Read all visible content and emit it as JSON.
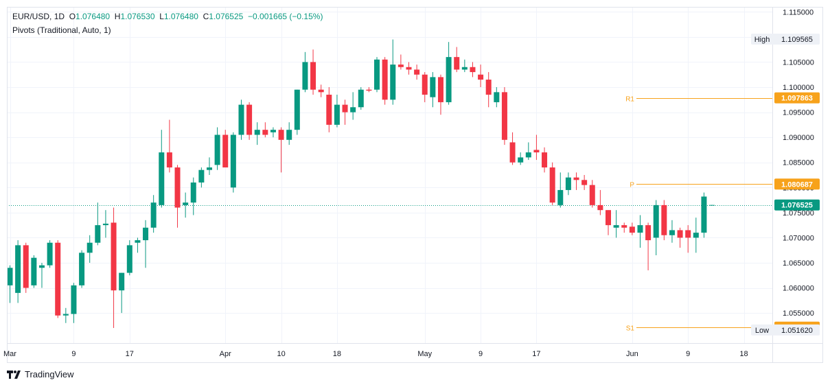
{
  "legend": {
    "symbol": "EUR/USD",
    "interval": "1D",
    "open_label": "O",
    "open": "1.076480",
    "high_label": "H",
    "high": "1.076530",
    "low_label": "L",
    "low": "1.076480",
    "close_label": "C",
    "close": "1.076525",
    "change": "−0.001665 (−0.15%)",
    "indicator": "Pivots (Traditional, Auto, 1)"
  },
  "brand": "TradingView",
  "colors": {
    "up": "#089981",
    "down": "#f23645",
    "pivot": "#f7a21b",
    "grid": "#f0f3fa",
    "text": "#131722",
    "axis_border": "#e0e3eb"
  },
  "chart_data": {
    "type": "candlestick",
    "title": "",
    "xlabel": "",
    "ylabel": "",
    "ylim": [
      1.049,
      1.116
    ],
    "y_ticks": [
      "1.115000",
      "1.110000",
      "1.105000",
      "1.100000",
      "1.095000",
      "1.090000",
      "1.085000",
      "1.080000",
      "1.075000",
      "1.070000",
      "1.065000",
      "1.060000",
      "1.055000"
    ],
    "x_ticks": [
      {
        "label": "Mar",
        "bar": 0
      },
      {
        "label": "9",
        "bar": 8
      },
      {
        "label": "17",
        "bar": 15
      },
      {
        "label": "Apr",
        "bar": 27
      },
      {
        "label": "10",
        "bar": 34
      },
      {
        "label": "18",
        "bar": 41
      },
      {
        "label": "May",
        "bar": 52
      },
      {
        "label": "9",
        "bar": 59
      },
      {
        "label": "17",
        "bar": 66
      },
      {
        "label": "Jun",
        "bar": 78
      },
      {
        "label": "9",
        "bar": 85
      },
      {
        "label": "18",
        "bar": 92
      }
    ],
    "candles": [
      [
        1.0605,
        1.0645,
        1.057,
        1.064
      ],
      [
        1.059,
        1.0695,
        1.057,
        1.0685
      ],
      [
        1.0685,
        1.069,
        1.059,
        1.06
      ],
      [
        1.0605,
        1.0665,
        1.06,
        1.066
      ],
      [
        1.064,
        1.065,
        1.06,
        1.0645
      ],
      [
        1.0645,
        1.0695,
        1.064,
        1.069
      ],
      [
        1.069,
        1.0695,
        1.054,
        1.0545
      ],
      [
        1.0545,
        1.056,
        1.053,
        1.0548
      ],
      [
        1.0548,
        1.061,
        1.053,
        1.0605
      ],
      [
        1.0605,
        1.0675,
        1.06,
        1.067
      ],
      [
        1.067,
        1.0705,
        1.065,
        1.069
      ],
      [
        1.069,
        1.077,
        1.0685,
        1.0725
      ],
      [
        1.0725,
        1.0755,
        1.07,
        1.0728
      ],
      [
        1.073,
        1.076,
        1.052,
        1.0595
      ],
      [
        1.0595,
        1.063,
        1.055,
        1.063
      ],
      [
        1.063,
        1.0695,
        1.0625,
        1.0685
      ],
      [
        1.069,
        1.07,
        1.067,
        1.0695
      ],
      [
        1.0695,
        1.0735,
        1.064,
        1.072
      ],
      [
        1.072,
        1.0785,
        1.071,
        1.077
      ],
      [
        1.0765,
        1.0915,
        1.076,
        1.087
      ],
      [
        1.087,
        1.0935,
        1.083,
        1.084
      ],
      [
        1.084,
        1.0845,
        1.072,
        1.076
      ],
      [
        1.0765,
        1.079,
        1.074,
        1.077
      ],
      [
        1.077,
        1.082,
        1.0745,
        1.081
      ],
      [
        1.081,
        1.084,
        1.08,
        1.0835
      ],
      [
        1.0835,
        1.086,
        1.0825,
        1.084
      ],
      [
        1.0845,
        1.092,
        1.0835,
        1.0905
      ],
      [
        1.0905,
        1.0915,
        1.084,
        1.084
      ],
      [
        1.08,
        1.091,
        1.079,
        1.0905
      ],
      [
        1.0905,
        1.0975,
        1.0895,
        1.0965
      ],
      [
        1.0965,
        1.097,
        1.0895,
        1.0905
      ],
      [
        1.0905,
        1.093,
        1.0885,
        1.0915
      ],
      [
        1.0915,
        1.093,
        1.09,
        1.0905
      ],
      [
        1.091,
        1.092,
        1.09,
        1.0915
      ],
      [
        1.0915,
        1.092,
        1.083,
        1.0895
      ],
      [
        1.0895,
        1.093,
        1.0885,
        1.0915
      ],
      [
        1.0915,
        1.0995,
        1.0905,
        1.0995
      ],
      [
        1.0995,
        1.107,
        1.099,
        1.105
      ],
      [
        1.105,
        1.1075,
        1.0985,
        1.0995
      ],
      [
        1.0995,
        1.1005,
        1.098,
        1.099
      ],
      [
        1.0985,
        1.1,
        1.091,
        1.0925
      ],
      [
        1.0925,
        1.0985,
        1.092,
        1.0965
      ],
      [
        1.0965,
        1.0975,
        1.0925,
        1.095
      ],
      [
        1.095,
        1.099,
        1.0935,
        1.096
      ],
      [
        1.096,
        1.1,
        1.0955,
        1.0995
      ],
      [
        1.0995,
        1.1,
        1.099,
        1.0993
      ],
      [
        1.0995,
        1.106,
        1.099,
        1.1055
      ],
      [
        1.1055,
        1.106,
        1.0965,
        1.0975
      ],
      [
        1.0975,
        1.1095,
        1.0965,
        1.1045
      ],
      [
        1.1045,
        1.1065,
        1.1035,
        1.104
      ],
      [
        1.104,
        1.105,
        1.1025,
        1.1035
      ],
      [
        1.1035,
        1.1045,
        1.1015,
        1.1025
      ],
      [
        1.1025,
        1.103,
        1.097,
        1.0985
      ],
      [
        1.098,
        1.103,
        1.096,
        1.102
      ],
      [
        1.102,
        1.1025,
        1.0945,
        1.097
      ],
      [
        1.097,
        1.109,
        1.0965,
        1.106
      ],
      [
        1.106,
        1.108,
        1.103,
        1.1035
      ],
      [
        1.1035,
        1.1055,
        1.103,
        1.104
      ],
      [
        1.104,
        1.105,
        1.102,
        1.103
      ],
      [
        1.1025,
        1.1045,
        1.1,
        1.1015
      ],
      [
        1.1015,
        1.103,
        1.096,
        1.0985
      ],
      [
        1.097,
        1.1,
        1.096,
        1.099
      ],
      [
        1.099,
        1.1,
        1.0885,
        1.0895
      ],
      [
        1.089,
        1.091,
        1.0845,
        1.085
      ],
      [
        1.085,
        1.087,
        1.0845,
        1.086
      ],
      [
        1.086,
        1.089,
        1.0855,
        1.087
      ],
      [
        1.0875,
        1.0905,
        1.0855,
        1.087
      ],
      [
        1.087,
        1.088,
        1.083,
        1.084
      ],
      [
        1.084,
        1.085,
        1.0765,
        1.077
      ],
      [
        1.0765,
        1.083,
        1.076,
        1.0795
      ],
      [
        1.0795,
        1.083,
        1.0785,
        1.082
      ],
      [
        1.082,
        1.083,
        1.0795,
        1.0815
      ],
      [
        1.0815,
        1.0825,
        1.0795,
        1.0805
      ],
      [
        1.0805,
        1.0815,
        1.076,
        1.0765
      ],
      [
        1.0765,
        1.0795,
        1.0745,
        1.0755
      ],
      [
        1.0755,
        1.0755,
        1.0705,
        1.0725
      ],
      [
        1.072,
        1.0755,
        1.07,
        1.0725
      ],
      [
        1.0725,
        1.073,
        1.071,
        1.072
      ],
      [
        1.0722,
        1.073,
        1.0705,
        1.071
      ],
      [
        1.071,
        1.0745,
        1.068,
        1.0725
      ],
      [
        1.0725,
        1.073,
        1.0635,
        1.0695
      ],
      [
        1.07,
        1.0775,
        1.0665,
        1.0765
      ],
      [
        1.0765,
        1.0775,
        1.0695,
        1.0705
      ],
      [
        1.0705,
        1.0735,
        1.069,
        1.0715
      ],
      [
        1.0715,
        1.072,
        1.068,
        1.07
      ],
      [
        1.0715,
        1.0725,
        1.067,
        1.07
      ],
      [
        1.07,
        1.074,
        1.067,
        1.071
      ],
      [
        1.071,
        1.079,
        1.07,
        1.0782
      ],
      [
        1.07648,
        1.07653,
        1.07648,
        1.076525
      ]
    ],
    "pivot_levels": [
      {
        "name": "R1",
        "value": 1.097863,
        "label": "1.097863"
      },
      {
        "name": "P",
        "value": 1.080687,
        "label": "1.080687"
      },
      {
        "name": "S1",
        "value": 1.052178,
        "label": "1.052178"
      }
    ],
    "high_marker": {
      "label": "High",
      "value": 1.109565,
      "text": "1.109565"
    },
    "low_marker": {
      "label": "Low",
      "value": 1.05162,
      "text": "1.051620"
    },
    "current_price": {
      "value": 1.076525,
      "label": "1.076525"
    },
    "grid": true
  }
}
